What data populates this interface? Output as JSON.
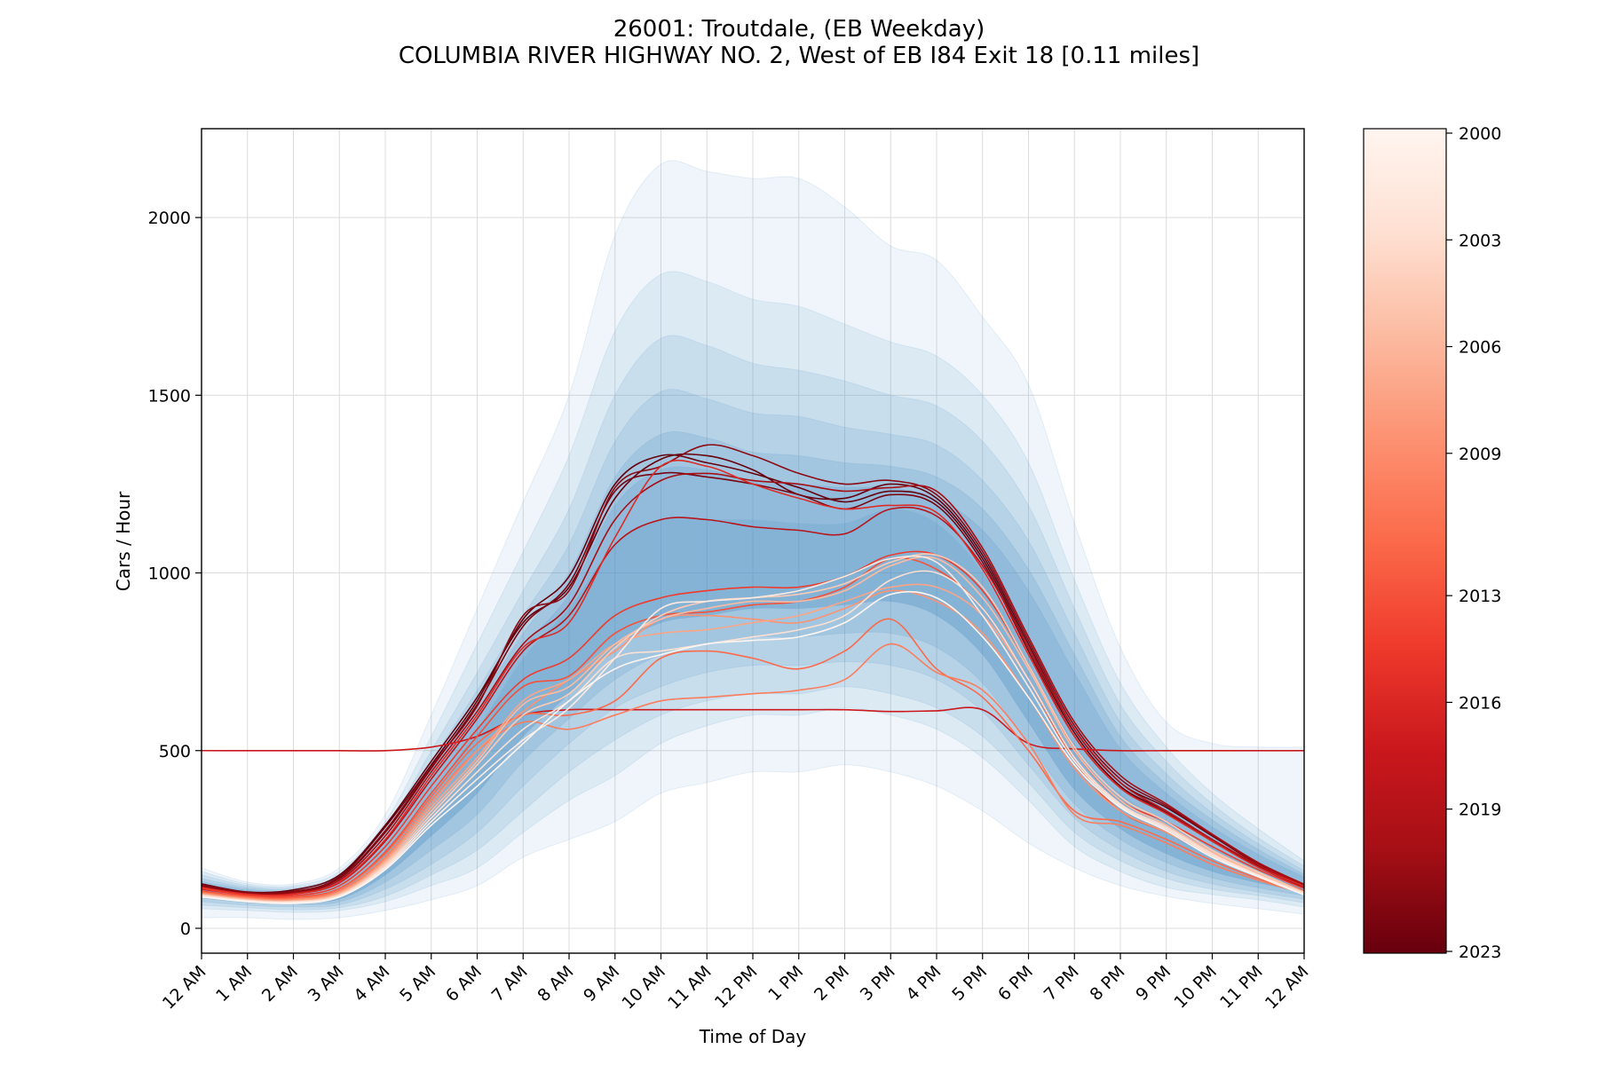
{
  "chart_data": {
    "type": "line",
    "title_line1": "26001: Troutdale, (EB Weekday)",
    "title_line2": "COLUMBIA RIVER HIGHWAY NO. 2, West of EB I84 Exit 18 [0.11 miles]",
    "xlabel": "Time of Day",
    "ylabel": "Cars / Hour",
    "ylim": [
      -70,
      2250
    ],
    "xlim": [
      0,
      24
    ],
    "grid": true,
    "x_tick_labels": [
      "12 AM",
      "1 AM",
      "2 AM",
      "3 AM",
      "4 AM",
      "5 AM",
      "6 AM",
      "7 AM",
      "8 AM",
      "9 AM",
      "10 AM",
      "11 AM",
      "12 PM",
      "1 PM",
      "2 PM",
      "3 PM",
      "4 PM",
      "5 PM",
      "6 PM",
      "7 PM",
      "8 PM",
      "9 PM",
      "10 PM",
      "11 PM",
      "12 AM"
    ],
    "y_ticks": [
      0,
      500,
      1000,
      1500,
      2000
    ],
    "colorbar": {
      "label_values": [
        "2000",
        "2003",
        "2006",
        "2009",
        "2013",
        "2016",
        "2019",
        "2023"
      ],
      "year_min": 2000,
      "year_max": 2023,
      "colors": [
        "#fff5f0",
        "#fee0d2",
        "#fcbba1",
        "#fc9272",
        "#fb6a4a",
        "#ef3b2c",
        "#cb181d",
        "#a50f15",
        "#67000d"
      ]
    },
    "band_color": "#4a8fc4",
    "band_x": [
      0,
      1,
      2,
      3,
      4,
      5,
      6,
      7,
      8,
      9,
      10,
      11,
      12,
      13,
      14,
      15,
      16,
      17,
      18,
      19,
      20,
      21,
      22,
      23,
      24
    ],
    "band_median": [
      120,
      100,
      95,
      110,
      220,
      380,
      560,
      760,
      900,
      1080,
      1150,
      1150,
      1150,
      1140,
      1140,
      1180,
      1140,
      1000,
      760,
      520,
      380,
      300,
      230,
      170,
      110
    ],
    "band_outer_low": [
      60,
      50,
      45,
      50,
      80,
      130,
      190,
      290,
      380,
      460,
      560,
      610,
      640,
      640,
      660,
      640,
      600,
      520,
      390,
      250,
      170,
      120,
      100,
      90,
      70
    ],
    "band_outer_high": [
      170,
      130,
      125,
      170,
      320,
      600,
      900,
      1200,
      1500,
      1950,
      2150,
      2130,
      2110,
      2110,
      2030,
      1920,
      1880,
      1720,
      1530,
      1140,
      790,
      580,
      520,
      510,
      510
    ],
    "bands": [
      {
        "lo": [
          30,
          30,
          25,
          30,
          50,
          80,
          120,
          200,
          250,
          300,
          380,
          410,
          440,
          440,
          460,
          440,
          400,
          330,
          240,
          170,
          120,
          90,
          70,
          55,
          40
        ],
        "hi": [
          170,
          130,
          125,
          170,
          320,
          600,
          900,
          1200,
          1500,
          1950,
          2150,
          2130,
          2110,
          2110,
          2030,
          1920,
          1880,
          1720,
          1530,
          1140,
          790,
          580,
          520,
          510,
          510
        ]
      },
      {
        "lo": [
          55,
          50,
          45,
          50,
          75,
          120,
          170,
          270,
          360,
          430,
          520,
          570,
          600,
          600,
          620,
          600,
          560,
          480,
          360,
          230,
          160,
          115,
          95,
          80,
          60
        ],
        "hi": [
          160,
          125,
          120,
          160,
          300,
          540,
          800,
          1060,
          1330,
          1680,
          1840,
          1820,
          1770,
          1750,
          1700,
          1650,
          1610,
          1500,
          1310,
          980,
          690,
          510,
          380,
          280,
          190
        ]
      },
      {
        "lo": [
          65,
          58,
          52,
          58,
          90,
          150,
          220,
          330,
          440,
          530,
          600,
          640,
          660,
          660,
          680,
          660,
          620,
          540,
          410,
          270,
          190,
          140,
          110,
          92,
          72
        ],
        "hi": [
          150,
          120,
          115,
          150,
          280,
          500,
          720,
          950,
          1180,
          1500,
          1660,
          1640,
          1590,
          1570,
          1540,
          1500,
          1470,
          1370,
          1190,
          900,
          630,
          470,
          350,
          255,
          175
        ]
      },
      {
        "lo": [
          75,
          65,
          60,
          66,
          110,
          180,
          270,
          400,
          520,
          620,
          680,
          720,
          740,
          740,
          750,
          740,
          700,
          610,
          460,
          310,
          220,
          160,
          125,
          102,
          82
        ],
        "hi": [
          140,
          115,
          110,
          142,
          265,
          470,
          670,
          880,
          1080,
          1370,
          1510,
          1490,
          1450,
          1440,
          1410,
          1390,
          1360,
          1260,
          1090,
          830,
          580,
          435,
          325,
          238,
          162
        ]
      },
      {
        "lo": [
          85,
          72,
          67,
          74,
          130,
          220,
          320,
          470,
          590,
          700,
          770,
          800,
          820,
          820,
          830,
          830,
          790,
          690,
          520,
          350,
          250,
          185,
          142,
          114,
          92
        ],
        "hi": [
          132,
          110,
          105,
          134,
          250,
          445,
          630,
          830,
          1000,
          1270,
          1390,
          1380,
          1340,
          1330,
          1310,
          1300,
          1270,
          1180,
          1010,
          770,
          540,
          405,
          305,
          222,
          152
        ]
      },
      {
        "lo": [
          95,
          80,
          74,
          82,
          150,
          260,
          380,
          540,
          660,
          790,
          860,
          880,
          900,
          900,
          910,
          920,
          880,
          770,
          580,
          390,
          280,
          210,
          160,
          128,
          102
        ],
        "hi": [
          126,
          106,
          101,
          128,
          238,
          420,
          600,
          790,
          940,
          1190,
          1290,
          1290,
          1260,
          1250,
          1240,
          1240,
          1210,
          1120,
          950,
          720,
          505,
          380,
          285,
          208,
          144
        ]
      }
    ],
    "series_colors": [
      "#67000d",
      "#67000d",
      "#7a0510",
      "#8a0a13",
      "#a50f15",
      "#b81419",
      "#cb181d",
      "#de2a25",
      "#ef3b2c",
      "#f4503a",
      "#fb6a4a",
      "#fb7d5d",
      "#fc9272",
      "#fca486",
      "#fcbba1",
      "#fdcab5",
      "#fee0d2",
      "#feeae1",
      "#fff5f0"
    ],
    "series": [
      {
        "values": [
          125,
          102,
          108,
          150,
          290,
          470,
          650,
          860,
          960,
          1210,
          1320,
          1330,
          1290,
          1220,
          1210,
          1250,
          1210,
          1050,
          800,
          560,
          410,
          340,
          260,
          180,
          120
        ]
      },
      {
        "values": [
          120,
          100,
          102,
          145,
          285,
          460,
          640,
          870,
          990,
          1250,
          1330,
          1310,
          1280,
          1240,
          1200,
          1230,
          1200,
          1040,
          790,
          550,
          400,
          330,
          250,
          175,
          118
        ]
      },
      {
        "values": [
          118,
          98,
          100,
          140,
          270,
          450,
          630,
          850,
          970,
          1230,
          1280,
          1270,
          1250,
          1220,
          1180,
          1220,
          1190,
          1030,
          780,
          540,
          395,
          325,
          245,
          172,
          115
        ]
      },
      {
        "values": [
          122,
          101,
          104,
          142,
          275,
          455,
          625,
          880,
          950,
          1240,
          1300,
          1360,
          1330,
          1280,
          1250,
          1260,
          1220,
          1060,
          810,
          570,
          420,
          345,
          262,
          182,
          122
        ]
      },
      {
        "values": [
          116,
          97,
          99,
          135,
          260,
          440,
          610,
          800,
          910,
          1150,
          1260,
          1280,
          1260,
          1250,
          1230,
          1240,
          1230,
          1070,
          820,
          580,
          430,
          350,
          265,
          185,
          124
        ]
      },
      {
        "values": [
          110,
          95,
          97,
          128,
          245,
          420,
          590,
          780,
          880,
          1080,
          1150,
          1150,
          1130,
          1120,
          1110,
          1180,
          1160,
          1020,
          790,
          560,
          410,
          330,
          250,
          178,
          120
        ]
      },
      {
        "values": [
          500,
          500,
          500,
          500,
          500,
          510,
          540,
          600,
          615,
          615,
          615,
          615,
          615,
          615,
          615,
          610,
          612,
          615,
          520,
          505,
          500,
          500,
          500,
          500,
          500
        ]
      },
      {
        "values": [
          115,
          96,
          96,
          130,
          250,
          430,
          600,
          790,
          860,
          1100,
          1300,
          1300,
          1250,
          1210,
          1180,
          1190,
          1170,
          1010,
          770,
          540,
          395,
          322,
          245,
          172,
          118
        ]
      },
      {
        "values": [
          112,
          93,
          92,
          120,
          230,
          400,
          560,
          700,
          760,
          880,
          930,
          950,
          960,
          960,
          990,
          1050,
          1050,
          950,
          740,
          500,
          360,
          300,
          230,
          165,
          112
        ]
      },
      {
        "values": [
          105,
          90,
          88,
          112,
          215,
          380,
          540,
          680,
          710,
          830,
          880,
          890,
          910,
          920,
          960,
          1040,
          1010,
          900,
          700,
          470,
          330,
          270,
          210,
          155,
          105
        ]
      },
      {
        "values": [
          102,
          88,
          85,
          110,
          210,
          370,
          520,
          600,
          600,
          640,
          760,
          780,
          760,
          730,
          780,
          870,
          730,
          650,
          500,
          330,
          300,
          250,
          190,
          140,
          100
        ]
      },
      {
        "values": [
          100,
          85,
          82,
          105,
          200,
          360,
          500,
          580,
          560,
          600,
          640,
          650,
          660,
          670,
          700,
          800,
          720,
          670,
          520,
          320,
          290,
          240,
          180,
          135,
          98
        ]
      },
      {
        "values": [
          98,
          84,
          80,
          102,
          195,
          350,
          500,
          610,
          700,
          780,
          870,
          880,
          870,
          860,
          900,
          950,
          920,
          830,
          650,
          450,
          330,
          270,
          205,
          150,
          102
        ]
      },
      {
        "values": [
          96,
          82,
          78,
          100,
          190,
          340,
          480,
          640,
          700,
          800,
          830,
          840,
          860,
          880,
          920,
          960,
          960,
          880,
          700,
          480,
          345,
          280,
          210,
          152,
          100
        ]
      },
      {
        "values": [
          95,
          80,
          76,
          96,
          185,
          330,
          470,
          630,
          680,
          800,
          870,
          900,
          920,
          920,
          950,
          1020,
          1040,
          930,
          730,
          500,
          360,
          290,
          215,
          155,
          100
        ]
      },
      {
        "values": [
          94,
          79,
          75,
          95,
          180,
          320,
          460,
          600,
          660,
          790,
          880,
          920,
          930,
          940,
          970,
          1030,
          1050,
          960,
          740,
          510,
          370,
          300,
          220,
          158,
          102
        ]
      },
      {
        "values": [
          92,
          78,
          74,
          92,
          175,
          310,
          440,
          560,
          640,
          760,
          780,
          800,
          820,
          840,
          880,
          980,
          1000,
          900,
          700,
          480,
          350,
          285,
          210,
          150,
          98
        ]
      },
      {
        "values": [
          90,
          76,
          72,
          90,
          170,
          300,
          420,
          530,
          620,
          760,
          900,
          920,
          930,
          950,
          990,
          1040,
          1030,
          880,
          680,
          470,
          345,
          280,
          205,
          148,
          96
        ]
      },
      {
        "values": [
          88,
          75,
          70,
          88,
          165,
          290,
          400,
          520,
          640,
          730,
          770,
          800,
          810,
          820,
          860,
          940,
          930,
          820,
          650,
          460,
          340,
          275,
          200,
          145,
          94
        ]
      }
    ]
  }
}
